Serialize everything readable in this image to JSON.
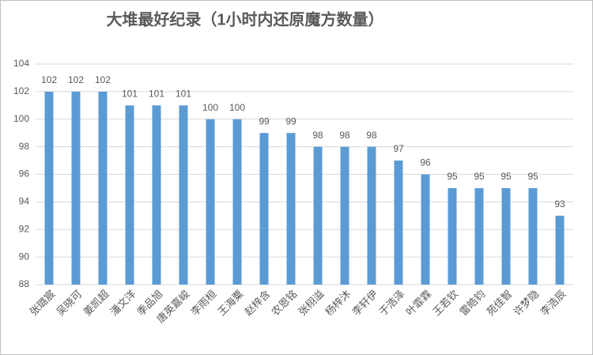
{
  "chart_data": {
    "type": "bar",
    "title": "大堆最好纪录（1小时内还原魔方数量）",
    "categories": [
      "张璐宸",
      "吴晓可",
      "姜凯超",
      "潘文洋",
      "季品旭",
      "唐英嘉峻",
      "李雨桓",
      "王海粟",
      "赵梓含",
      "农恩铭",
      "张栩溢",
      "杨梓沐",
      "李轩伊",
      "于浩泽",
      "叶霏霖",
      "王若钦",
      "雷皓钧",
      "苑佳智",
      "许梦隐",
      "李浩辰"
    ],
    "values": [
      102,
      102,
      102,
      101,
      101,
      101,
      100,
      100,
      99,
      99,
      98,
      98,
      98,
      97,
      96,
      95,
      95,
      95,
      95,
      93
    ],
    "color": "#5b9bd5",
    "ylim": [
      88,
      104
    ],
    "yticks": [
      88,
      90,
      92,
      94,
      96,
      98,
      100,
      102,
      104
    ],
    "grid": true
  }
}
